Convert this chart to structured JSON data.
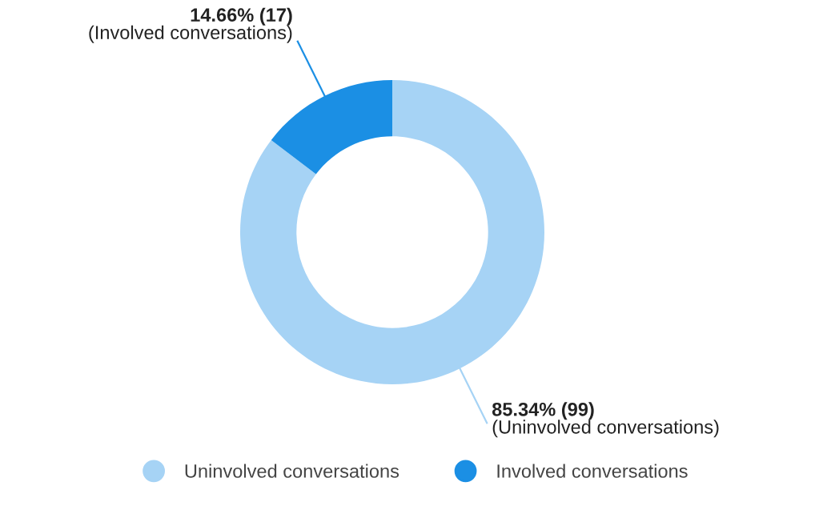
{
  "chart_data": {
    "type": "donut",
    "categories": [
      "Uninvolved conversations",
      "Involved conversations"
    ],
    "values": [
      99,
      17
    ],
    "colors": [
      "#a6d3f5",
      "#1b8fe4"
    ],
    "value_labels": [
      "85.34% (99)\n(Uninvolved conversations)",
      "14.66% (17)\n(Involved conversations)"
    ],
    "legend": "bottom"
  }
}
